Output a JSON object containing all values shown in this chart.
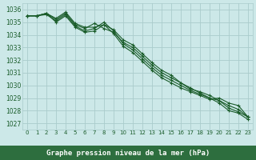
{
  "title": "Graphe pression niveau de la mer (hPa)",
  "background_color": "#cce8e8",
  "label_bg_color": "#2d6e3e",
  "grid_color": "#aacccc",
  "line_color": "#1a5c2a",
  "label_text_color": "#ffffff",
  "tick_color": "#1a5c2a",
  "xlim": [
    -0.5,
    23.5
  ],
  "ylim": [
    1026.5,
    1036.5
  ],
  "yticks": [
    1027,
    1028,
    1029,
    1030,
    1031,
    1032,
    1033,
    1034,
    1035,
    1036
  ],
  "x_labels": [
    "0",
    "1",
    "2",
    "3",
    "4",
    "5",
    "6",
    "7",
    "8",
    "9",
    "10",
    "11",
    "12",
    "13",
    "14",
    "15",
    "16",
    "17",
    "18",
    "19",
    "20",
    "21",
    "22",
    "23"
  ],
  "series": [
    [
      1035.5,
      1035.5,
      1035.7,
      1035.3,
      1035.8,
      1034.9,
      1034.6,
      1034.6,
      1034.8,
      1034.4,
      1033.6,
      1033.2,
      1032.5,
      1031.8,
      1031.2,
      1030.8,
      1030.2,
      1029.8,
      1029.4,
      1029.0,
      1028.6,
      1028.0,
      1027.8,
      1027.3
    ],
    [
      1035.5,
      1035.5,
      1035.7,
      1035.2,
      1035.7,
      1034.8,
      1034.5,
      1034.9,
      1034.5,
      1034.2,
      1033.4,
      1033.0,
      1032.3,
      1031.6,
      1031.0,
      1030.6,
      1030.2,
      1029.7,
      1029.5,
      1029.2,
      1028.8,
      1028.2,
      1027.9,
      1027.5
    ],
    [
      1035.5,
      1035.5,
      1035.6,
      1035.1,
      1035.6,
      1034.7,
      1034.3,
      1034.5,
      1035.0,
      1034.3,
      1033.3,
      1032.8,
      1032.1,
      1031.4,
      1030.8,
      1030.4,
      1030.0,
      1029.6,
      1029.3,
      1029.0,
      1028.8,
      1028.4,
      1028.1,
      1027.5
    ],
    [
      1035.5,
      1035.5,
      1035.7,
      1035.0,
      1035.5,
      1034.6,
      1034.2,
      1034.3,
      1034.8,
      1034.1,
      1033.1,
      1032.6,
      1031.9,
      1031.2,
      1030.6,
      1030.2,
      1029.8,
      1029.5,
      1029.2,
      1028.9,
      1029.0,
      1028.6,
      1028.4,
      1027.5
    ]
  ]
}
